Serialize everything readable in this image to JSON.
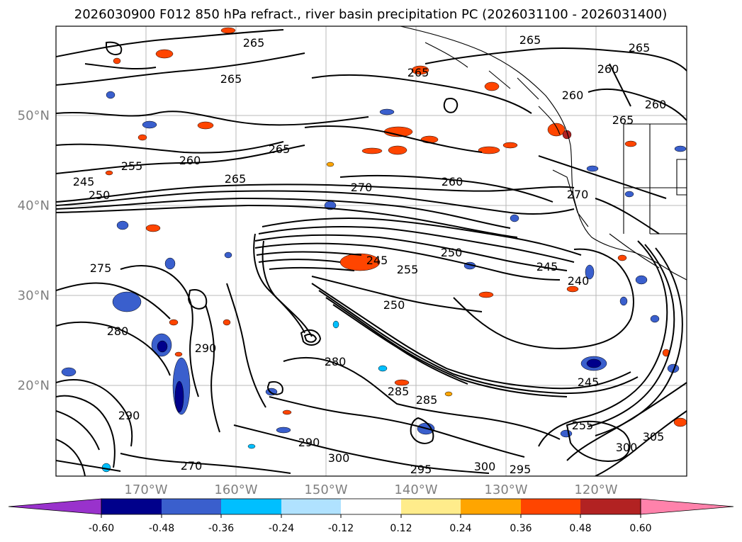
{
  "title": "2026030900 F012 850 hPa refract., river basin precipitation PC (2026031100 - 2026031400)",
  "axes": {
    "lat_labels": [
      "50°N",
      "40°N",
      "30°N",
      "20°N"
    ],
    "lon_labels": [
      "170°W",
      "160°W",
      "150°W",
      "140°W",
      "130°W",
      "120°W"
    ]
  },
  "colorbar": {
    "ticks": [
      "-0.60",
      "-0.48",
      "-0.36",
      "-0.24",
      "-0.12",
      "0.12",
      "0.24",
      "0.36",
      "0.48",
      "0.60"
    ],
    "colors": [
      "#9932cc",
      "#00008b",
      "#3a5fcd",
      "#00bfff",
      "#b0e2ff",
      "#ffffff",
      "#ffec8b",
      "#ffa500",
      "#ff4500",
      "#b22222",
      "#ff82ab"
    ],
    "extend": "both"
  },
  "contour_labels": [
    {
      "text": "265"
    },
    {
      "text": "265"
    },
    {
      "text": "265"
    },
    {
      "text": "265"
    },
    {
      "text": "265"
    },
    {
      "text": "260"
    },
    {
      "text": "260"
    },
    {
      "text": "260"
    },
    {
      "text": "265"
    },
    {
      "text": "260"
    },
    {
      "text": "255"
    },
    {
      "text": "265"
    },
    {
      "text": "265"
    },
    {
      "text": "270"
    },
    {
      "text": "260"
    },
    {
      "text": "245"
    },
    {
      "text": "250"
    },
    {
      "text": "270"
    },
    {
      "text": "250"
    },
    {
      "text": "245"
    },
    {
      "text": "255"
    },
    {
      "text": "245"
    },
    {
      "text": "275"
    },
    {
      "text": "240"
    },
    {
      "text": "250"
    },
    {
      "text": "280"
    },
    {
      "text": "280"
    },
    {
      "text": "285"
    },
    {
      "text": "285"
    },
    {
      "text": "245"
    },
    {
      "text": "290"
    },
    {
      "text": "290"
    },
    {
      "text": "300"
    },
    {
      "text": "295"
    },
    {
      "text": "300"
    },
    {
      "text": "295"
    },
    {
      "text": "270"
    },
    {
      "text": "305"
    },
    {
      "text": "300"
    },
    {
      "text": "255"
    },
    {
      "text": "290"
    }
  ]
}
